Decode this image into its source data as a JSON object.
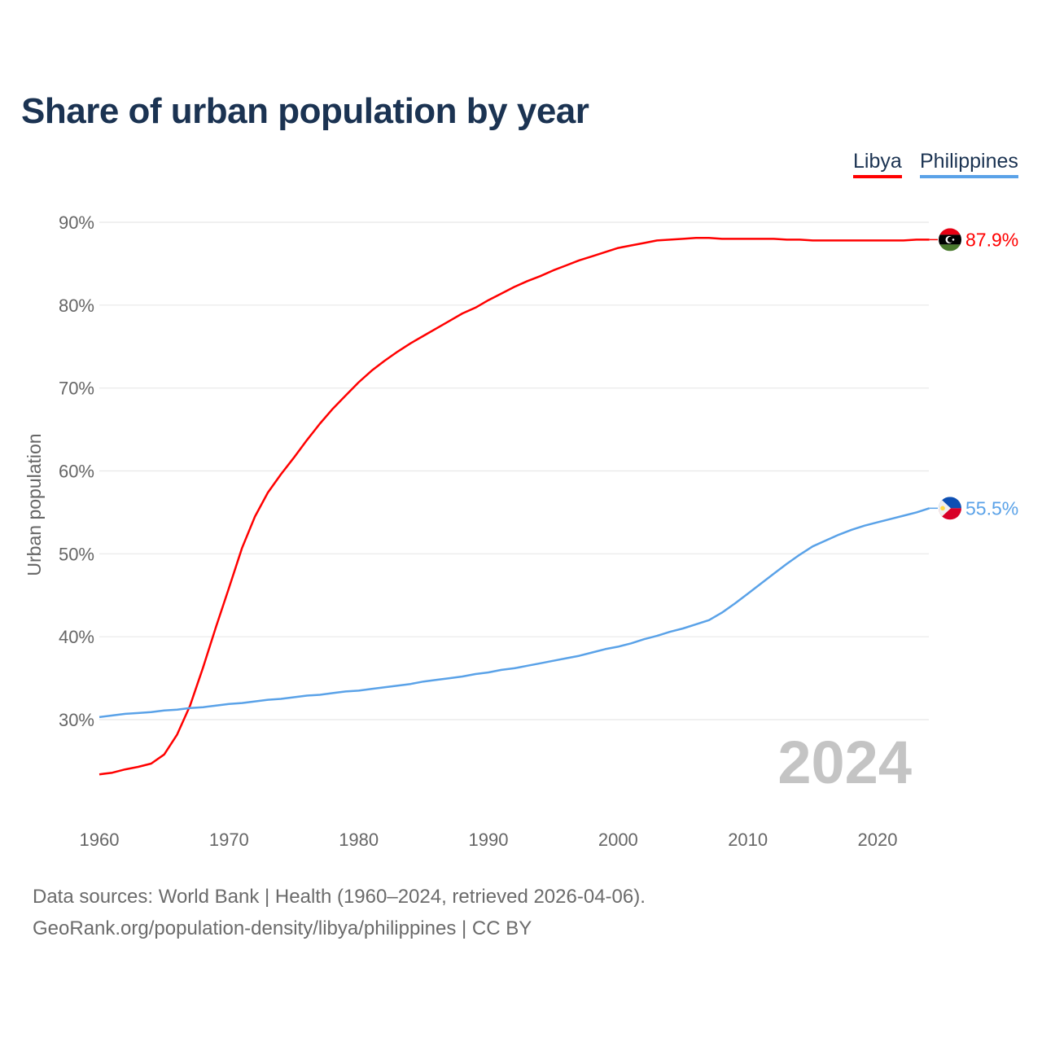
{
  "chart_data": {
    "type": "line",
    "title": "Share of urban population by year",
    "xlabel": "",
    "ylabel": "Urban population",
    "xlim": [
      1960,
      2024
    ],
    "ylim": [
      20,
      90
    ],
    "grid": true,
    "legend_position": "top-right",
    "x_ticks": [
      1960,
      1970,
      1980,
      1990,
      2000,
      2010,
      2020
    ],
    "y_ticks": [
      30,
      40,
      50,
      60,
      70,
      80,
      90
    ],
    "y_tick_labels": [
      "30%",
      "40%",
      "50%",
      "60%",
      "70%",
      "80%",
      "90%"
    ],
    "year_watermark": "2024",
    "series": [
      {
        "name": "Libya",
        "color": "#ff0000",
        "end_label": "87.9%",
        "flag": "libya-flag",
        "start_year": 1960,
        "values": [
          23.4,
          23.6,
          24.0,
          24.3,
          24.7,
          25.8,
          28.2,
          31.7,
          36.3,
          41.2,
          45.9,
          50.7,
          54.5,
          57.4,
          59.6,
          61.6,
          63.7,
          65.7,
          67.5,
          69.1,
          70.7,
          72.1,
          73.3,
          74.4,
          75.4,
          76.3,
          77.2,
          78.1,
          79.0,
          79.7,
          80.6,
          81.4,
          82.2,
          82.9,
          83.5,
          84.2,
          84.8,
          85.4,
          85.9,
          86.4,
          86.9,
          87.2,
          87.5,
          87.8,
          87.9,
          88.0,
          88.1,
          88.1,
          88.0,
          88.0,
          88.0,
          88.0,
          88.0,
          87.9,
          87.9,
          87.8,
          87.8,
          87.8,
          87.8,
          87.8,
          87.8,
          87.8,
          87.8,
          87.9,
          87.9
        ]
      },
      {
        "name": "Philippines",
        "color": "#5aa2e8",
        "end_label": "55.5%",
        "flag": "philippines-flag",
        "start_year": 1960,
        "values": [
          30.3,
          30.5,
          30.7,
          30.8,
          30.9,
          31.1,
          31.2,
          31.4,
          31.5,
          31.7,
          31.9,
          32.0,
          32.2,
          32.4,
          32.5,
          32.7,
          32.9,
          33.0,
          33.2,
          33.4,
          33.5,
          33.7,
          33.9,
          34.1,
          34.3,
          34.6,
          34.8,
          35.0,
          35.2,
          35.5,
          35.7,
          36.0,
          36.2,
          36.5,
          36.8,
          37.1,
          37.4,
          37.7,
          38.1,
          38.5,
          38.8,
          39.2,
          39.7,
          40.1,
          40.6,
          41.0,
          41.5,
          42.0,
          42.9,
          44.0,
          45.2,
          46.4,
          47.6,
          48.8,
          49.9,
          50.9,
          51.6,
          52.3,
          52.9,
          53.4,
          53.8,
          54.2,
          54.6,
          55.0,
          55.5
        ]
      }
    ]
  },
  "footer": {
    "source_line": "Data sources: World Bank | Health (1960–2024, retrieved 2026-04-06).",
    "link_line": "GeoRank.org/population-density/libya/philippines | CC BY"
  }
}
